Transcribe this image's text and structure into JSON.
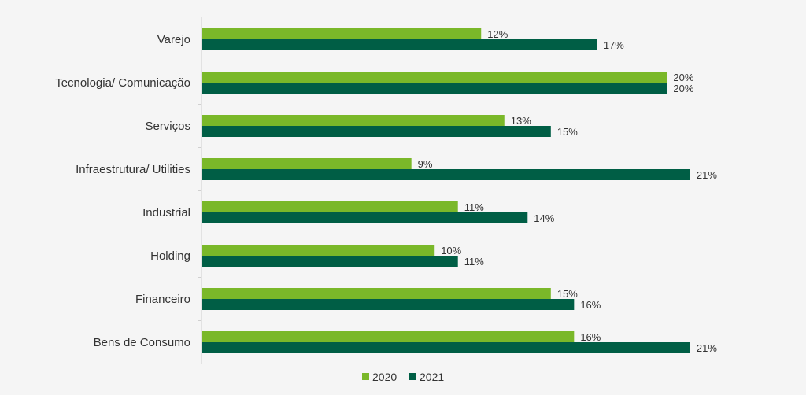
{
  "chart_data": {
    "type": "bar",
    "orientation": "horizontal",
    "categories": [
      "Varejo",
      "Tecnologia/ Comunicação",
      "Serviços",
      "Infraestrutura/ Utilities",
      "Industrial",
      "Holding",
      "Financeiro",
      "Bens de Consumo"
    ],
    "series": [
      {
        "name": "2020",
        "color": "#7ab829",
        "values": [
          12,
          20,
          13,
          9,
          11,
          10,
          15,
          16
        ]
      },
      {
        "name": "2021",
        "color": "#005e45",
        "values": [
          17,
          20,
          15,
          21,
          14,
          11,
          16,
          21
        ]
      }
    ],
    "value_suffix": "%",
    "xlim": [
      0,
      21
    ],
    "grid": false,
    "legend": "bottom-center",
    "title": "",
    "xlabel": "",
    "ylabel": ""
  }
}
